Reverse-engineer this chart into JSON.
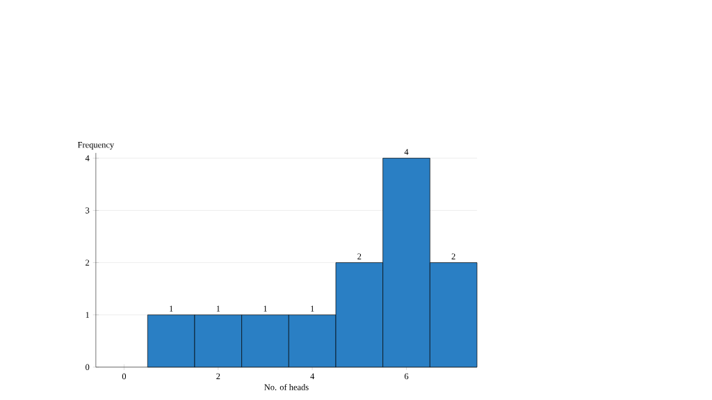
{
  "chart_data": {
    "type": "histogram",
    "xlabel": "No. of heads",
    "ylabel": "Frequency",
    "bins": [
      0.5,
      1.5,
      2.5,
      3.5,
      4.5,
      5.5,
      6.5,
      7.5
    ],
    "values": [
      1,
      1,
      1,
      1,
      2,
      4,
      2
    ],
    "color": "#2a7fc4",
    "xlim": [
      -0.6,
      7.5
    ],
    "ylim": [
      0,
      4.1
    ],
    "xticks": [
      0,
      2,
      4,
      6
    ],
    "yticks": [
      0,
      1,
      2,
      3,
      4
    ],
    "grid": "y",
    "data_labels": true
  }
}
